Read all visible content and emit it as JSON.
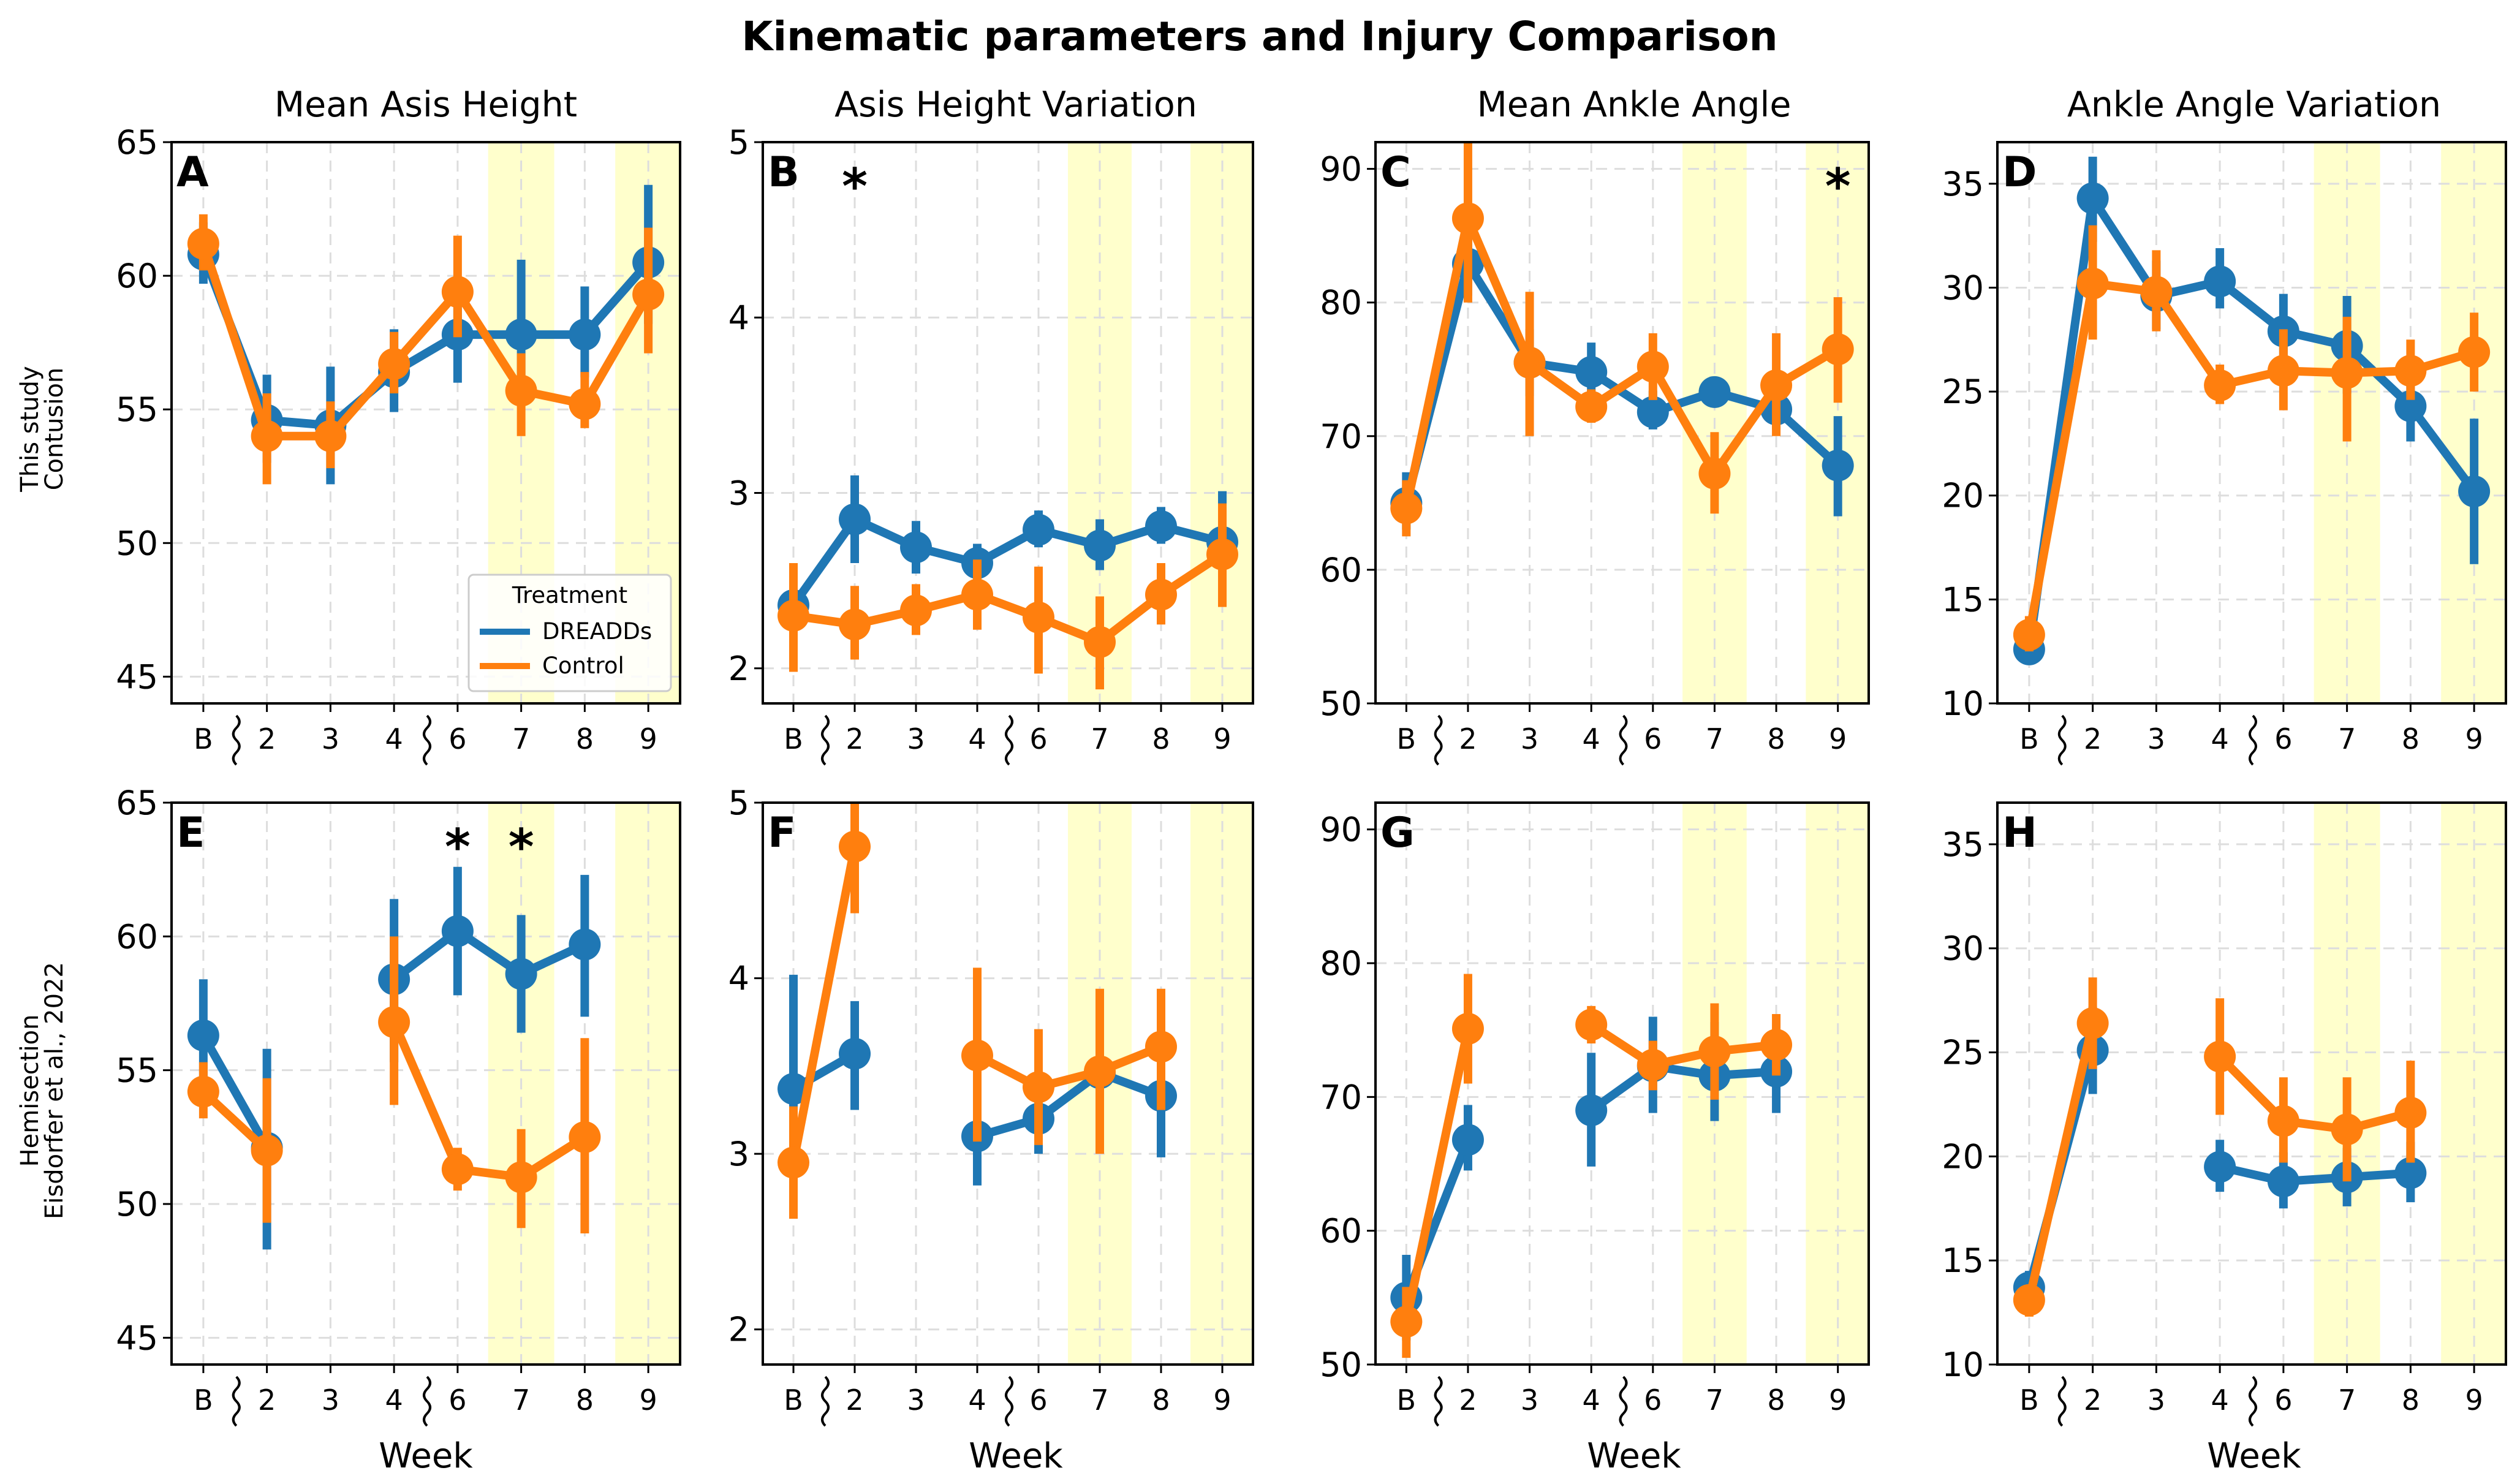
{
  "figure": {
    "title": "Kinematic parameters and Injury Comparison",
    "x_axis_label": "Week",
    "row_labels": [
      [
        "This study",
        "Contusion"
      ],
      [
        "Hemisection",
        "Eisdorfer et al., 2022"
      ]
    ],
    "column_titles": [
      "Mean Asis Height",
      "Asis Height Variation",
      "Mean Ankle Angle",
      "Ankle Angle Variation"
    ],
    "legend": {
      "title": "Treatment",
      "entries": [
        "DREADDs",
        "Control"
      ]
    },
    "colors": {
      "DREADDs": "#1f77b4",
      "Control": "#ff7f0e",
      "highlight": "#ffffcc",
      "grid": "#dddddd"
    }
  },
  "chart_data": [
    {
      "panel": "A",
      "type": "line",
      "title": "Mean Asis Height",
      "row": 0,
      "col": 0,
      "categories": [
        "B",
        "2",
        "3",
        "4",
        "6",
        "7",
        "8",
        "9"
      ],
      "ylim": [
        44,
        65
      ],
      "yticks": [
        45,
        50,
        55,
        60,
        65
      ],
      "highlight_weeks": [
        "7",
        "9"
      ],
      "significant_weeks": [],
      "legend": true,
      "series": [
        {
          "name": "DREADDs",
          "values": [
            60.8,
            54.6,
            54.4,
            56.4,
            57.8,
            57.8,
            57.8,
            60.5
          ],
          "err_low": [
            59.7,
            53.0,
            52.2,
            54.9,
            56.0,
            55.7,
            56.2,
            58.2
          ],
          "err_high": [
            62.0,
            56.3,
            56.6,
            58.0,
            59.8,
            60.6,
            59.6,
            63.4
          ]
        },
        {
          "name": "Control",
          "values": [
            61.2,
            54.0,
            54.0,
            56.7,
            59.4,
            55.7,
            55.2,
            59.3
          ],
          "err_low": [
            60.2,
            52.2,
            52.8,
            55.6,
            57.7,
            54.0,
            54.3,
            57.1
          ],
          "err_high": [
            62.3,
            55.6,
            55.3,
            57.9,
            61.5,
            57.1,
            56.4,
            61.8
          ]
        }
      ]
    },
    {
      "panel": "B",
      "type": "line",
      "title": "Asis Height Variation",
      "row": 0,
      "col": 1,
      "categories": [
        "B",
        "2",
        "3",
        "4",
        "6",
        "7",
        "8",
        "9"
      ],
      "ylim": [
        1.8,
        5.0
      ],
      "yticks": [
        2,
        3,
        4,
        5
      ],
      "highlight_weeks": [
        "7",
        "9"
      ],
      "significant_weeks": [
        "2"
      ],
      "legend": false,
      "series": [
        {
          "name": "DREADDs",
          "values": [
            2.36,
            2.85,
            2.69,
            2.6,
            2.79,
            2.7,
            2.81,
            2.72
          ],
          "err_low": [
            2.22,
            2.6,
            2.54,
            2.49,
            2.69,
            2.56,
            2.71,
            2.4
          ],
          "err_high": [
            2.5,
            3.1,
            2.84,
            2.71,
            2.9,
            2.85,
            2.92,
            3.01
          ]
        },
        {
          "name": "Control",
          "values": [
            2.3,
            2.25,
            2.33,
            2.42,
            2.29,
            2.15,
            2.42,
            2.65
          ],
          "err_low": [
            1.98,
            2.05,
            2.19,
            2.22,
            1.97,
            1.88,
            2.25,
            2.35
          ],
          "err_high": [
            2.6,
            2.47,
            2.48,
            2.62,
            2.58,
            2.41,
            2.6,
            2.94
          ]
        }
      ]
    },
    {
      "panel": "C",
      "type": "line",
      "title": "Mean Ankle Angle",
      "row": 0,
      "col": 2,
      "categories": [
        "B",
        "2",
        "3",
        "4",
        "6",
        "7",
        "8",
        "9"
      ],
      "ylim": [
        50,
        92
      ],
      "yticks": [
        50,
        60,
        70,
        80,
        90
      ],
      "highlight_weeks": [
        "7",
        "9"
      ],
      "significant_weeks": [
        "9"
      ],
      "legend": false,
      "series": [
        {
          "name": "DREADDs",
          "values": [
            65.0,
            82.9,
            75.5,
            74.8,
            71.8,
            73.3,
            72.0,
            67.8
          ],
          "err_low": [
            63.0,
            80.5,
            73.0,
            72.7,
            70.5,
            72.4,
            70.5,
            64.0
          ],
          "err_high": [
            67.3,
            86.0,
            78.0,
            77.0,
            73.4,
            74.2,
            73.7,
            71.5
          ]
        },
        {
          "name": "Control",
          "values": [
            64.6,
            86.3,
            75.5,
            72.2,
            75.2,
            67.2,
            73.8,
            76.5
          ],
          "err_low": [
            62.5,
            80.0,
            70.0,
            71.0,
            72.7,
            64.2,
            70.0,
            72.5
          ],
          "err_high": [
            66.7,
            92.0,
            80.8,
            73.5,
            77.7,
            70.3,
            77.7,
            80.4
          ]
        }
      ]
    },
    {
      "panel": "D",
      "type": "line",
      "title": "Ankle Angle Variation",
      "row": 0,
      "col": 3,
      "categories": [
        "B",
        "2",
        "3",
        "4",
        "6",
        "7",
        "8",
        "9"
      ],
      "ylim": [
        10,
        37
      ],
      "yticks": [
        10,
        15,
        20,
        25,
        30,
        35
      ],
      "highlight_weeks": [
        "7",
        "9"
      ],
      "significant_weeks": [],
      "legend": false,
      "series": [
        {
          "name": "DREADDs",
          "values": [
            12.6,
            34.3,
            29.6,
            30.3,
            27.9,
            27.2,
            24.3,
            20.2
          ],
          "err_low": [
            11.9,
            32.2,
            28.0,
            29.0,
            26.2,
            24.9,
            22.6,
            16.7
          ],
          "err_high": [
            13.4,
            36.3,
            31.3,
            31.9,
            29.7,
            29.6,
            26.1,
            23.7
          ]
        },
        {
          "name": "Control",
          "values": [
            13.3,
            30.2,
            29.8,
            25.3,
            26.0,
            25.9,
            26.0,
            26.9
          ],
          "err_low": [
            12.5,
            27.5,
            27.9,
            24.4,
            24.1,
            22.6,
            24.6,
            25.0
          ],
          "err_high": [
            14.2,
            33.0,
            31.8,
            26.3,
            28.0,
            28.6,
            27.5,
            28.8
          ]
        }
      ]
    },
    {
      "panel": "E",
      "type": "line",
      "title": "",
      "row": 1,
      "col": 0,
      "categories": [
        "B",
        "2",
        "3",
        "4",
        "6",
        "7",
        "8",
        "9"
      ],
      "ylim": [
        44,
        65
      ],
      "yticks": [
        45,
        50,
        55,
        60,
        65
      ],
      "highlight_weeks": [
        "7",
        "9"
      ],
      "significant_weeks": [
        "6",
        "7"
      ],
      "legend": false,
      "series": [
        {
          "name": "DREADDs",
          "values": [
            56.3,
            52.1,
            null,
            58.4,
            60.2,
            58.6,
            59.7,
            null
          ],
          "err_low": [
            54.1,
            48.3,
            null,
            55.3,
            57.8,
            56.4,
            57.0,
            null
          ],
          "err_high": [
            58.4,
            55.8,
            null,
            61.4,
            62.6,
            60.8,
            62.3,
            null
          ]
        },
        {
          "name": "Control",
          "values": [
            54.2,
            52.0,
            null,
            56.8,
            51.3,
            51.0,
            52.5,
            null
          ],
          "err_low": [
            53.2,
            49.3,
            null,
            53.7,
            50.5,
            49.1,
            48.9,
            null
          ],
          "err_high": [
            55.3,
            54.7,
            null,
            60.0,
            52.1,
            52.8,
            56.2,
            null
          ]
        }
      ]
    },
    {
      "panel": "F",
      "type": "line",
      "title": "",
      "row": 1,
      "col": 1,
      "categories": [
        "B",
        "2",
        "3",
        "4",
        "6",
        "7",
        "8",
        "9"
      ],
      "ylim": [
        1.8,
        5.0
      ],
      "yticks": [
        2,
        3,
        4,
        5
      ],
      "highlight_weeks": [
        "7",
        "9"
      ],
      "significant_weeks": [],
      "legend": false,
      "series": [
        {
          "name": "DREADDs",
          "values": [
            3.37,
            3.57,
            null,
            3.1,
            3.2,
            3.46,
            3.33,
            null
          ],
          "err_low": [
            2.71,
            3.25,
            null,
            2.82,
            3.0,
            3.16,
            2.98,
            null
          ],
          "err_high": [
            4.02,
            3.87,
            null,
            3.4,
            3.42,
            3.75,
            3.67,
            null
          ]
        },
        {
          "name": "Control",
          "values": [
            2.95,
            4.75,
            null,
            3.56,
            3.38,
            3.47,
            3.61,
            null
          ],
          "err_low": [
            2.63,
            4.37,
            null,
            3.07,
            3.05,
            3.0,
            3.25,
            null
          ],
          "err_high": [
            3.27,
            5.0,
            null,
            4.06,
            3.71,
            3.94,
            3.94,
            null
          ]
        }
      ]
    },
    {
      "panel": "G",
      "type": "line",
      "title": "",
      "row": 1,
      "col": 2,
      "categories": [
        "B",
        "2",
        "3",
        "4",
        "6",
        "7",
        "8",
        "9"
      ],
      "ylim": [
        50,
        92
      ],
      "yticks": [
        50,
        60,
        70,
        80,
        90
      ],
      "highlight_weeks": [
        "7",
        "9"
      ],
      "significant_weeks": [],
      "legend": false,
      "series": [
        {
          "name": "DREADDs",
          "values": [
            55.0,
            66.8,
            null,
            69.0,
            72.3,
            71.6,
            71.9,
            null
          ],
          "err_low": [
            51.8,
            64.5,
            null,
            64.8,
            68.8,
            68.2,
            68.8,
            null
          ],
          "err_high": [
            58.2,
            69.4,
            null,
            73.3,
            76.0,
            75.6,
            75.0,
            null
          ]
        },
        {
          "name": "Control",
          "values": [
            53.2,
            75.1,
            null,
            75.4,
            72.4,
            73.4,
            73.9,
            null
          ],
          "err_low": [
            50.5,
            71.0,
            null,
            74.0,
            70.5,
            69.8,
            71.6,
            null
          ],
          "err_high": [
            55.8,
            79.2,
            null,
            76.8,
            74.2,
            77.0,
            76.2,
            null
          ]
        }
      ]
    },
    {
      "panel": "H",
      "type": "line",
      "title": "",
      "row": 1,
      "col": 3,
      "categories": [
        "B",
        "2",
        "3",
        "4",
        "6",
        "7",
        "8",
        "9"
      ],
      "ylim": [
        10,
        37
      ],
      "yticks": [
        10,
        15,
        20,
        25,
        30,
        35
      ],
      "highlight_weeks": [
        "7",
        "9"
      ],
      "significant_weeks": [],
      "legend": false,
      "series": [
        {
          "name": "DREADDs",
          "values": [
            13.7,
            25.1,
            null,
            19.5,
            18.8,
            19.0,
            19.2,
            null
          ],
          "err_low": [
            12.9,
            23.0,
            null,
            18.3,
            17.5,
            17.6,
            17.8,
            null
          ],
          "err_high": [
            14.5,
            27.2,
            null,
            20.8,
            20.2,
            20.4,
            20.7,
            null
          ]
        },
        {
          "name": "Control",
          "values": [
            13.1,
            26.4,
            null,
            24.8,
            21.7,
            21.3,
            22.1,
            null
          ],
          "err_low": [
            12.3,
            24.2,
            null,
            22.0,
            19.7,
            18.8,
            19.7,
            null
          ],
          "err_high": [
            13.8,
            28.6,
            null,
            27.6,
            23.8,
            23.8,
            24.6,
            null
          ]
        }
      ]
    }
  ]
}
